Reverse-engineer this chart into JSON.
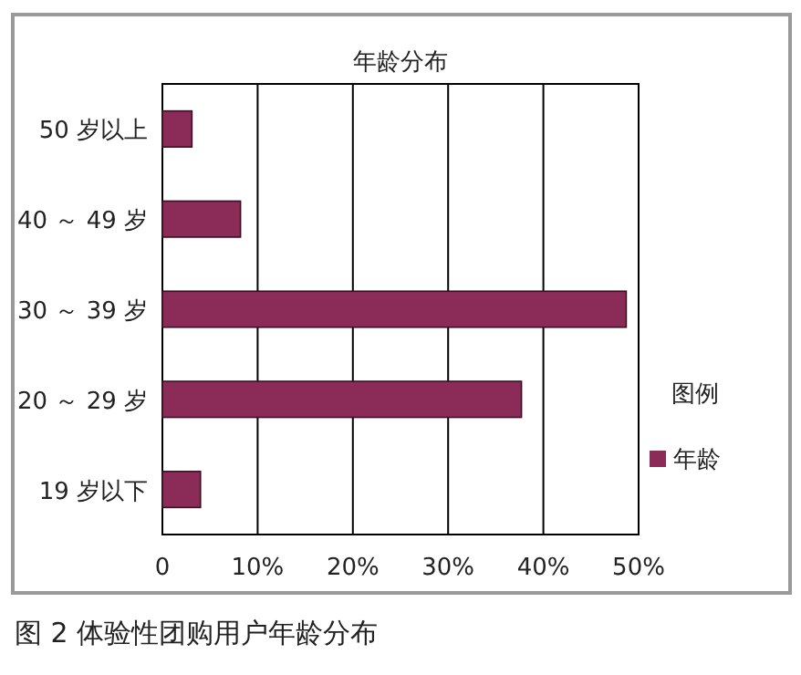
{
  "chart_data": {
    "type": "bar",
    "orientation": "horizontal",
    "title": "年龄分布",
    "legend_title": "图例",
    "categories": [
      "50 岁以上",
      "40 ～ 49 岁",
      "30 ～ 39 岁",
      "20 ～ 29 岁",
      "19 岁以下"
    ],
    "series": [
      {
        "name": "年龄",
        "color": "#8b2b57",
        "values": [
          3.1,
          8.2,
          48.7,
          37.7,
          4
        ]
      }
    ],
    "xlim": [
      0,
      50
    ],
    "xticks": [
      0,
      {
        "value": 10,
        "label": "10%"
      },
      {
        "value": 20,
        "label": "20%"
      },
      {
        "value": 30,
        "label": "30%"
      },
      {
        "value": 40,
        "label": "40%"
      },
      {
        "value": 50,
        "label": "50%"
      }
    ],
    "grid": "x",
    "legend": "right",
    "annotations": [
      "图 2 体验性团购用户年龄分布"
    ]
  }
}
